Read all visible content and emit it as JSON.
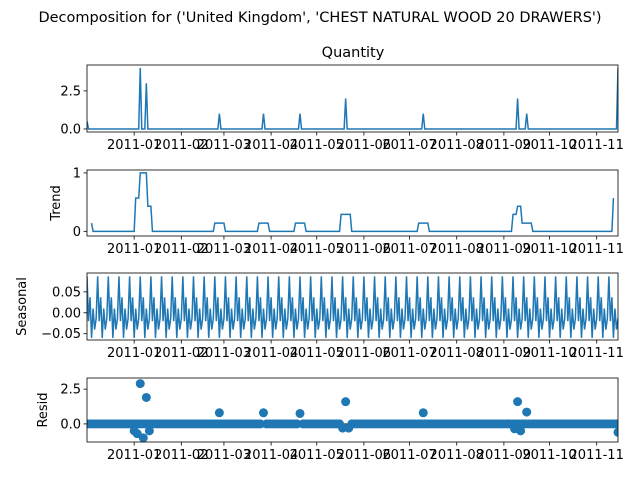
{
  "figure": {
    "title": "Decomposition for ('United Kingdom', 'CHEST NATURAL WOOD 20 DRAWERS')",
    "line_color": "#1f77b4"
  },
  "chart_data": [
    {
      "type": "line",
      "name": "Quantity",
      "title": "Quantity",
      "ylabel": "",
      "ylim": [
        -0.2,
        4.2
      ],
      "yticks": [
        0.0,
        2.5
      ],
      "ytick_labels": [
        "0.0",
        "2.5"
      ],
      "xlim": [
        "2010-12-01",
        "2011-11-15"
      ],
      "xticks": [
        "2011-01-01",
        "2011-02-01",
        "2011-03-01",
        "2011-04-01",
        "2011-05-01",
        "2011-06-01",
        "2011-07-01",
        "2011-08-01",
        "2011-09-01",
        "2011-10-01",
        "2011-11-01"
      ],
      "xtick_labels": [
        "2011-01",
        "2011-02",
        "2011-03",
        "2011-04",
        "2011-05",
        "2011-06",
        "2011-07",
        "2011-08",
        "2011-09",
        "2011-10",
        "2011-11"
      ],
      "grid": false,
      "baseline": 0,
      "spikes": [
        {
          "x": "2010-12-01",
          "y": 0.5
        },
        {
          "x": "2011-01-05",
          "y": 4.0
        },
        {
          "x": "2011-01-09",
          "y": 3.0
        },
        {
          "x": "2011-02-26",
          "y": 1.0
        },
        {
          "x": "2011-03-27",
          "y": 1.0
        },
        {
          "x": "2011-04-20",
          "y": 1.0
        },
        {
          "x": "2011-05-20",
          "y": 2.0
        },
        {
          "x": "2011-07-10",
          "y": 1.0
        },
        {
          "x": "2011-09-10",
          "y": 2.0
        },
        {
          "x": "2011-09-16",
          "y": 1.0
        },
        {
          "x": "2011-11-15",
          "y": 4.0
        }
      ]
    },
    {
      "type": "line",
      "name": "Trend",
      "title": "",
      "ylabel": "Trend",
      "ylim": [
        -0.08,
        1.05
      ],
      "yticks": [
        0,
        1
      ],
      "ytick_labels": [
        "0",
        "1"
      ],
      "xlim": [
        "2010-12-01",
        "2011-11-15"
      ],
      "xticks": [
        "2011-01-01",
        "2011-02-01",
        "2011-03-01",
        "2011-04-01",
        "2011-05-01",
        "2011-06-01",
        "2011-07-01",
        "2011-08-01",
        "2011-09-01",
        "2011-10-01",
        "2011-11-01"
      ],
      "xtick_labels": [
        "2011-01",
        "2011-02",
        "2011-03",
        "2011-04",
        "2011-05",
        "2011-06",
        "2011-07",
        "2011-08",
        "2011-09",
        "2011-10",
        "2011-11"
      ],
      "grid": false,
      "points": [
        {
          "x": "2010-12-04",
          "y": 0.14
        },
        {
          "x": "2010-12-05",
          "y": 0.0
        },
        {
          "x": "2011-01-01",
          "y": 0.0
        },
        {
          "x": "2011-01-02",
          "y": 0.57
        },
        {
          "x": "2011-01-04",
          "y": 0.57
        },
        {
          "x": "2011-01-05",
          "y": 1.0
        },
        {
          "x": "2011-01-09",
          "y": 1.0
        },
        {
          "x": "2011-01-10",
          "y": 0.43
        },
        {
          "x": "2011-01-12",
          "y": 0.43
        },
        {
          "x": "2011-01-13",
          "y": 0.0
        },
        {
          "x": "2011-02-22",
          "y": 0.0
        },
        {
          "x": "2011-02-23",
          "y": 0.14
        },
        {
          "x": "2011-03-01",
          "y": 0.14
        },
        {
          "x": "2011-03-02",
          "y": 0.0
        },
        {
          "x": "2011-03-23",
          "y": 0.0
        },
        {
          "x": "2011-03-24",
          "y": 0.14
        },
        {
          "x": "2011-03-30",
          "y": 0.14
        },
        {
          "x": "2011-03-31",
          "y": 0.0
        },
        {
          "x": "2011-04-16",
          "y": 0.0
        },
        {
          "x": "2011-04-17",
          "y": 0.14
        },
        {
          "x": "2011-04-23",
          "y": 0.14
        },
        {
          "x": "2011-04-24",
          "y": 0.0
        },
        {
          "x": "2011-05-16",
          "y": 0.0
        },
        {
          "x": "2011-05-17",
          "y": 0.29
        },
        {
          "x": "2011-05-23",
          "y": 0.29
        },
        {
          "x": "2011-05-24",
          "y": 0.0
        },
        {
          "x": "2011-07-06",
          "y": 0.0
        },
        {
          "x": "2011-07-07",
          "y": 0.14
        },
        {
          "x": "2011-07-13",
          "y": 0.14
        },
        {
          "x": "2011-07-14",
          "y": 0.0
        },
        {
          "x": "2011-09-06",
          "y": 0.0
        },
        {
          "x": "2011-09-07",
          "y": 0.29
        },
        {
          "x": "2011-09-09",
          "y": 0.29
        },
        {
          "x": "2011-09-10",
          "y": 0.43
        },
        {
          "x": "2011-09-12",
          "y": 0.43
        },
        {
          "x": "2011-09-13",
          "y": 0.14
        },
        {
          "x": "2011-09-19",
          "y": 0.14
        },
        {
          "x": "2011-09-20",
          "y": 0.0
        },
        {
          "x": "2011-11-11",
          "y": 0.0
        },
        {
          "x": "2011-11-12",
          "y": 0.57
        }
      ]
    },
    {
      "type": "line",
      "name": "Seasonal",
      "title": "",
      "ylabel": "Seasonal",
      "ylim": [
        -0.065,
        0.095
      ],
      "yticks": [
        -0.05,
        0.0,
        0.05
      ],
      "ytick_labels": [
        "−0.05",
        "0.00",
        "0.05"
      ],
      "xlim": [
        "2010-12-01",
        "2011-11-15"
      ],
      "xticks": [
        "2011-01-01",
        "2011-02-01",
        "2011-03-01",
        "2011-04-01",
        "2011-05-01",
        "2011-06-01",
        "2011-07-01",
        "2011-08-01",
        "2011-09-01",
        "2011-10-01",
        "2011-11-01"
      ],
      "xtick_labels": [
        "2011-01",
        "2011-02",
        "2011-03",
        "2011-04",
        "2011-05",
        "2011-06",
        "2011-07",
        "2011-08",
        "2011-09",
        "2011-10",
        "2011-11"
      ],
      "grid": false,
      "period_days": 7,
      "pattern": [
        0.087,
        -0.02,
        0.037,
        -0.06,
        0.01,
        -0.04,
        -0.014
      ]
    },
    {
      "type": "scatter",
      "name": "Resid",
      "title": "",
      "ylabel": "Resid",
      "ylim": [
        -1.3,
        3.3
      ],
      "yticks": [
        0.0,
        2.5
      ],
      "ytick_labels": [
        "0.0",
        "2.5"
      ],
      "xlim": [
        "2010-12-01",
        "2011-11-15"
      ],
      "xticks": [
        "2011-01-01",
        "2011-02-01",
        "2011-03-01",
        "2011-04-01",
        "2011-05-01",
        "2011-06-01",
        "2011-07-01",
        "2011-08-01",
        "2011-09-01",
        "2011-10-01",
        "2011-11-01"
      ],
      "xtick_labels": [
        "2011-01",
        "2011-02",
        "2011-03",
        "2011-04",
        "2011-05",
        "2011-06",
        "2011-07",
        "2011-08",
        "2011-09",
        "2011-10",
        "2011-11"
      ],
      "grid": false,
      "hline": 0,
      "baseline_start": "2010-12-01",
      "baseline_end": "2011-11-15",
      "baseline_step_days": 2,
      "outliers": [
        {
          "x": "2011-01-01",
          "y": -0.5
        },
        {
          "x": "2011-01-03",
          "y": -0.7
        },
        {
          "x": "2011-01-05",
          "y": 2.9
        },
        {
          "x": "2011-01-07",
          "y": -1.0
        },
        {
          "x": "2011-01-09",
          "y": 1.9
        },
        {
          "x": "2011-01-11",
          "y": -0.5
        },
        {
          "x": "2011-02-26",
          "y": 0.8
        },
        {
          "x": "2011-03-27",
          "y": 0.8
        },
        {
          "x": "2011-04-20",
          "y": 0.75
        },
        {
          "x": "2011-05-18",
          "y": -0.3
        },
        {
          "x": "2011-05-20",
          "y": 1.6
        },
        {
          "x": "2011-05-22",
          "y": -0.3
        },
        {
          "x": "2011-07-10",
          "y": 0.8
        },
        {
          "x": "2011-09-08",
          "y": -0.35
        },
        {
          "x": "2011-09-10",
          "y": 1.6
        },
        {
          "x": "2011-09-12",
          "y": -0.5
        },
        {
          "x": "2011-09-16",
          "y": 0.85
        },
        {
          "x": "2011-11-15",
          "y": -0.6
        }
      ]
    }
  ]
}
